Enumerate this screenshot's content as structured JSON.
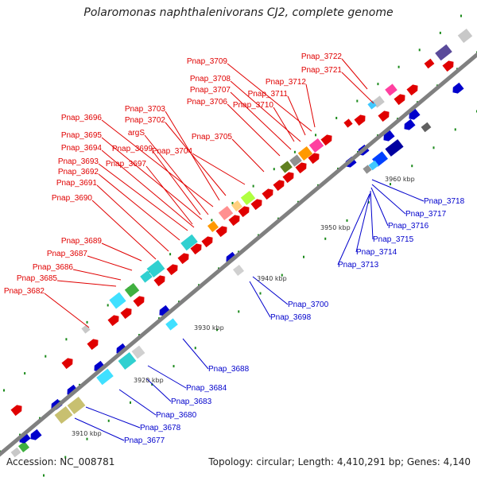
{
  "title": "Polaromonas naphthalenivorans CJ2, complete genome",
  "accession": "Accession: NC_008781",
  "topology": "Topology: circular; Length: 4,410,291 bp; Genes: 4,140",
  "colors": {
    "forward_label": "#e00000",
    "reverse_label": "#0000cc",
    "backbone": "#808080",
    "ticks": "#1a8a1a"
  },
  "ticks": [
    "3910 kbp",
    "3920 kbp",
    "3930 kbp",
    "3940 kbp",
    "3950 kbp",
    "3960 kbp"
  ],
  "forward_genes": [
    "Pnap_3722",
    "Pnap_3721",
    "Pnap_3709",
    "Pnap_3708",
    "Pnap_3712",
    "Pnap_3707",
    "Pnap_3711",
    "Pnap_3706",
    "Pnap_3710",
    "Pnap_3703",
    "Pnap_3696",
    "Pnap_3702",
    "argS",
    "Pnap_3695",
    "Pnap_3705",
    "Pnap_3694",
    "Pnap_3699",
    "Pnap_3704",
    "Pnap_3693",
    "Pnap_3697",
    "Pnap_3692",
    "Pnap_3691",
    "Pnap_3690",
    "Pnap_3689",
    "Pnap_3687",
    "Pnap_3686",
    "Pnap_3685",
    "Pnap_3682"
  ],
  "reverse_genes": [
    "Pnap_3718",
    "Pnap_3717",
    "Pnap_3716",
    "Pnap_3715",
    "Pnap_3714",
    "Pnap_3713",
    "Pnap_3700",
    "Pnap_3698",
    "Pnap_3688",
    "Pnap_3684",
    "Pnap_3683",
    "Pnap_3680",
    "Pnap_3678",
    "Pnap_3677"
  ]
}
